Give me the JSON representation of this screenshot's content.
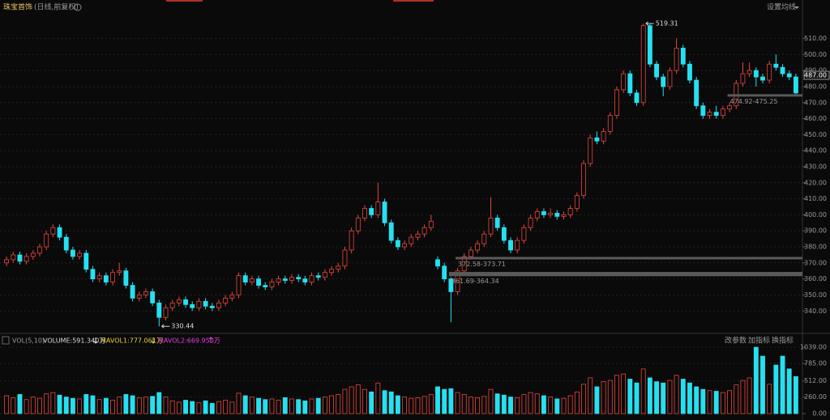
{
  "chart_data": {
    "type": "candlestick",
    "title": "珠宝首饰",
    "subtitle": "(日线,前复权)",
    "settings_button": "设置均线",
    "open": [
      370,
      372,
      375,
      371,
      374,
      376,
      380,
      388,
      392,
      386,
      378,
      374,
      376,
      366,
      360,
      362,
      358,
      364,
      365,
      356,
      348,
      350,
      352,
      345,
      336,
      342,
      345,
      347,
      344,
      342,
      346,
      343,
      342,
      345,
      348,
      350,
      362,
      358,
      360,
      356,
      355,
      358,
      360,
      359,
      361,
      360,
      358,
      362,
      361,
      364,
      366,
      368,
      378,
      390,
      398,
      404,
      400,
      408,
      395,
      384,
      380,
      382,
      386,
      388,
      392,
      372,
      368,
      360,
      352,
      365,
      374,
      378,
      382,
      388,
      398,
      392,
      384,
      378,
      384,
      392,
      398,
      402,
      400,
      401,
      399,
      400,
      404,
      412,
      432,
      448,
      446,
      452,
      462,
      478,
      488,
      476,
      470,
      518,
      494,
      486,
      480,
      490,
      504,
      494,
      484,
      468,
      462,
      464,
      462,
      466,
      468,
      482,
      488,
      490,
      486,
      484,
      494,
      492,
      488,
      486
    ],
    "high": [
      374,
      377,
      377,
      376,
      378,
      382,
      390,
      394,
      394,
      388,
      380,
      378,
      378,
      368,
      364,
      364,
      366,
      370,
      367,
      358,
      352,
      354,
      354,
      347,
      344,
      347,
      349,
      349,
      346,
      348,
      348,
      345,
      347,
      350,
      352,
      364,
      364,
      362,
      362,
      358,
      360,
      362,
      362,
      363,
      363,
      362,
      364,
      364,
      366,
      368,
      370,
      380,
      392,
      400,
      406,
      406,
      420,
      410,
      397,
      386,
      384,
      388,
      390,
      394,
      400,
      374,
      370,
      361,
      367,
      376,
      380,
      384,
      390,
      411,
      400,
      394,
      386,
      386,
      394,
      400,
      404,
      404,
      404,
      403,
      402,
      406,
      414,
      434,
      450,
      452,
      454,
      464,
      480,
      490,
      490,
      478,
      519.31,
      519,
      496,
      488,
      492,
      510,
      506,
      496,
      486,
      470,
      466,
      468,
      468,
      470,
      484,
      495,
      495,
      492,
      488,
      496,
      500,
      494,
      490,
      488
    ],
    "low": [
      368,
      370,
      369,
      369,
      372,
      374,
      378,
      386,
      384,
      376,
      372,
      372,
      364,
      358,
      358,
      356,
      356,
      362,
      354,
      346,
      346,
      348,
      343,
      330.44,
      334,
      340,
      343,
      342,
      340,
      340,
      341,
      340,
      340,
      343,
      346,
      348,
      356,
      356,
      354,
      353,
      353,
      356,
      357,
      357,
      358,
      356,
      356,
      359,
      359,
      362,
      364,
      366,
      376,
      388,
      396,
      398,
      398,
      393,
      382,
      378,
      378,
      380,
      384,
      386,
      390,
      366,
      358,
      333,
      350,
      363,
      372,
      376,
      380,
      386,
      390,
      382,
      376,
      376,
      382,
      390,
      396,
      398,
      398,
      397,
      397,
      398,
      402,
      410,
      430,
      444,
      444,
      450,
      460,
      476,
      474,
      468,
      468,
      492,
      484,
      474,
      478,
      488,
      492,
      482,
      466,
      460,
      460,
      460,
      460,
      464,
      466,
      480,
      486,
      480,
      482,
      482,
      490,
      486,
      484,
      474
    ],
    "close": [
      372,
      375,
      371,
      374,
      376,
      380,
      388,
      392,
      386,
      378,
      374,
      376,
      366,
      360,
      362,
      358,
      364,
      365,
      356,
      348,
      350,
      352,
      345,
      336,
      342,
      345,
      347,
      344,
      342,
      346,
      343,
      342,
      345,
      348,
      350,
      362,
      358,
      360,
      356,
      355,
      358,
      360,
      359,
      361,
      360,
      358,
      362,
      361,
      364,
      366,
      368,
      378,
      390,
      398,
      404,
      400,
      408,
      395,
      384,
      380,
      382,
      386,
      388,
      392,
      396,
      368,
      360,
      352,
      365,
      374,
      378,
      382,
      388,
      398,
      392,
      384,
      378,
      384,
      392,
      398,
      402,
      400,
      401,
      399,
      400,
      404,
      412,
      432,
      448,
      446,
      452,
      462,
      478,
      488,
      476,
      470,
      518,
      494,
      486,
      480,
      490,
      504,
      494,
      484,
      468,
      462,
      464,
      462,
      466,
      468,
      482,
      488,
      490,
      486,
      484,
      494,
      492,
      488,
      486,
      476
    ],
    "up_color": "#e8463c",
    "down_color": "#26e0f0",
    "ylim": [
      326,
      534
    ],
    "yticks": [
      {
        "value": 340,
        "label": "340.00"
      },
      {
        "value": 350,
        "label": "350.00"
      },
      {
        "value": 360,
        "label": "360.00"
      },
      {
        "value": 370,
        "label": "370.00"
      },
      {
        "value": 380,
        "label": "380.00"
      },
      {
        "value": 390,
        "label": "390.00"
      },
      {
        "value": 400,
        "label": "400.00"
      },
      {
        "value": 410,
        "label": "410.00"
      },
      {
        "value": 420,
        "label": "420.00"
      },
      {
        "value": 430,
        "label": "430.00"
      },
      {
        "value": 440,
        "label": "440.00"
      },
      {
        "value": 450,
        "label": "450.00"
      },
      {
        "value": 460,
        "label": "460.00"
      },
      {
        "value": 470,
        "label": "470.00"
      },
      {
        "value": 480,
        "label": "480.00"
      },
      {
        "value": 490,
        "label": "490.00"
      },
      {
        "value": 500,
        "label": "500.00"
      },
      {
        "value": 510,
        "label": "510.00"
      }
    ],
    "grid": true,
    "price_tag": {
      "value": 487,
      "label": "487.00"
    },
    "gaps": [
      {
        "label": "372.58-373.71",
        "low": 372.58,
        "high": 373.71
      },
      {
        "label": "361.69-364.34",
        "low": 361.69,
        "high": 364.34
      },
      {
        "label": "474.92-475.25",
        "low": 474.92,
        "high": 475.25
      }
    ],
    "volume": [
      280,
      250,
      300,
      220,
      260,
      240,
      310,
      330,
      290,
      260,
      240,
      230,
      300,
      280,
      220,
      240,
      210,
      260,
      300,
      280,
      250,
      260,
      270,
      330,
      260,
      200,
      180,
      210,
      190,
      170,
      200,
      160,
      190,
      210,
      180,
      320,
      280,
      260,
      240,
      220,
      230,
      210,
      250,
      230,
      220,
      200,
      230,
      240,
      260,
      280,
      300,
      380,
      420,
      450,
      380,
      340,
      480,
      360,
      340,
      280,
      260,
      240,
      250,
      270,
      300,
      420,
      380,
      390,
      330,
      300,
      260,
      250,
      270,
      380,
      310,
      290,
      260,
      250,
      300,
      330,
      310,
      280,
      260,
      230,
      240,
      280,
      340,
      460,
      560,
      420,
      500,
      520,
      600,
      620,
      540,
      480,
      700,
      560,
      500,
      480,
      520,
      600,
      540,
      480,
      420,
      380,
      360,
      350,
      330,
      360,
      450,
      520,
      560,
      1039,
      900,
      460,
      760,
      900,
      700,
      580
    ],
    "volume_ylim": [
      -100,
      1180
    ],
    "volume_yticks": [
      {
        "value": 0,
        "label": "0.00"
      },
      {
        "value": 260,
        "label": "260.00"
      },
      {
        "value": 512,
        "label": "512.00"
      },
      {
        "value": 785,
        "label": "785.00"
      },
      {
        "value": 1039,
        "label": "1039.00"
      }
    ],
    "volume_header": {
      "indicator": "VOL(5,10)",
      "volume": "VOLUME:591.340万",
      "mavol1": "MAVOL1:777.061万",
      "mavol2": "MAVOL2:669.950万"
    },
    "buttons": [
      "改参数",
      "加指标",
      "换指标"
    ]
  }
}
